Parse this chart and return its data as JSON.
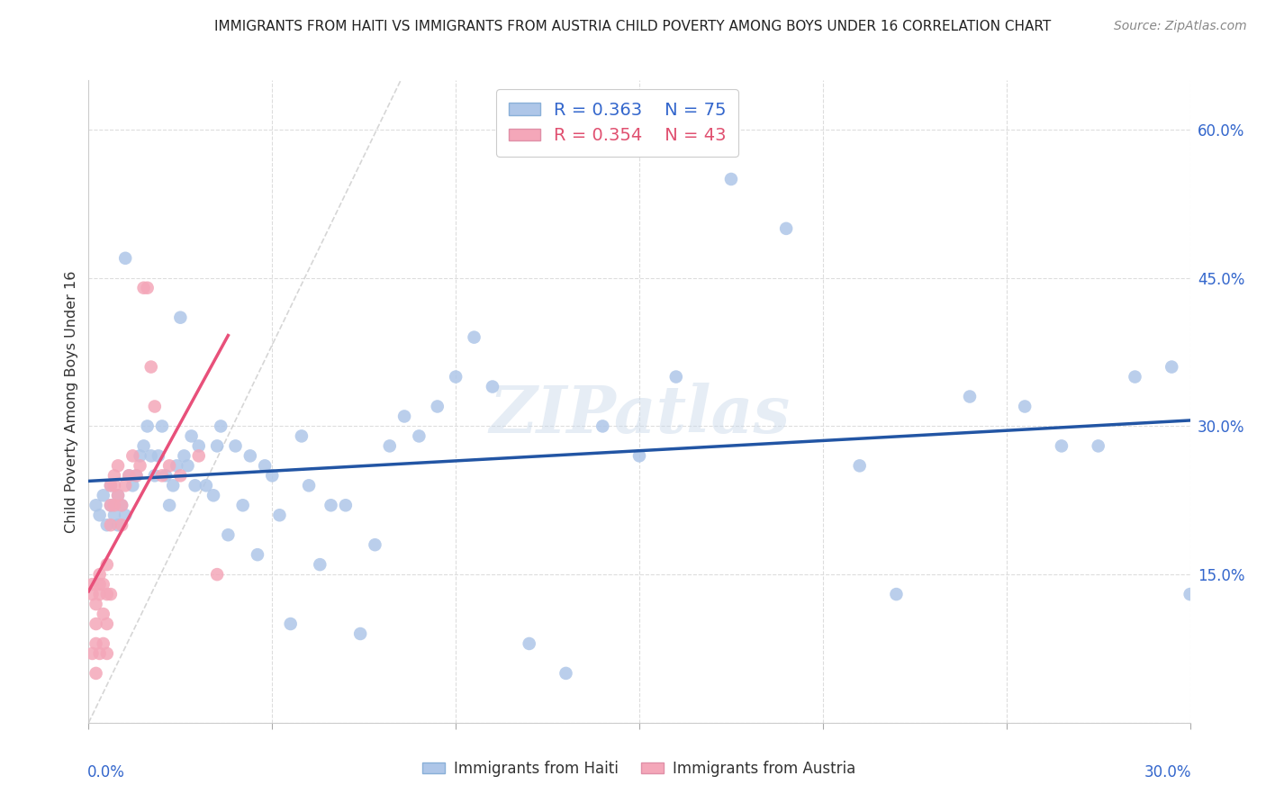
{
  "title": "IMMIGRANTS FROM HAITI VS IMMIGRANTS FROM AUSTRIA CHILD POVERTY AMONG BOYS UNDER 16 CORRELATION CHART",
  "source": "Source: ZipAtlas.com",
  "ylabel": "Child Poverty Among Boys Under 16",
  "right_yticks": [
    0.0,
    0.15,
    0.3,
    0.45,
    0.6
  ],
  "right_yticklabels": [
    "",
    "15.0%",
    "30.0%",
    "45.0%",
    "60.0%"
  ],
  "xlim": [
    0.0,
    0.3
  ],
  "ylim": [
    0.0,
    0.65
  ],
  "haiti_color": "#aec6e8",
  "austria_color": "#f4a7b9",
  "haiti_line_color": "#2255a4",
  "austria_line_color": "#e8507a",
  "diagonal_color": "#cccccc",
  "watermark": "ZIPatlas",
  "legend_haiti_R": "0.363",
  "legend_haiti_N": "75",
  "legend_austria_R": "0.354",
  "legend_austria_N": "43",
  "haiti_scatter_x": [
    0.002,
    0.003,
    0.004,
    0.005,
    0.006,
    0.006,
    0.007,
    0.008,
    0.008,
    0.009,
    0.01,
    0.01,
    0.011,
    0.012,
    0.013,
    0.014,
    0.015,
    0.016,
    0.017,
    0.018,
    0.019,
    0.02,
    0.021,
    0.022,
    0.023,
    0.024,
    0.025,
    0.026,
    0.027,
    0.028,
    0.029,
    0.03,
    0.032,
    0.034,
    0.035,
    0.036,
    0.038,
    0.04,
    0.042,
    0.044,
    0.046,
    0.048,
    0.05,
    0.052,
    0.055,
    0.058,
    0.06,
    0.063,
    0.066,
    0.07,
    0.074,
    0.078,
    0.082,
    0.086,
    0.09,
    0.095,
    0.1,
    0.105,
    0.11,
    0.12,
    0.13,
    0.14,
    0.15,
    0.16,
    0.175,
    0.19,
    0.21,
    0.22,
    0.24,
    0.255,
    0.265,
    0.275,
    0.285,
    0.295,
    0.3
  ],
  "haiti_scatter_y": [
    0.22,
    0.21,
    0.23,
    0.2,
    0.22,
    0.24,
    0.21,
    0.2,
    0.23,
    0.22,
    0.21,
    0.47,
    0.25,
    0.24,
    0.25,
    0.27,
    0.28,
    0.3,
    0.27,
    0.25,
    0.27,
    0.3,
    0.25,
    0.22,
    0.24,
    0.26,
    0.41,
    0.27,
    0.26,
    0.29,
    0.24,
    0.28,
    0.24,
    0.23,
    0.28,
    0.3,
    0.19,
    0.28,
    0.22,
    0.27,
    0.17,
    0.26,
    0.25,
    0.21,
    0.1,
    0.29,
    0.24,
    0.16,
    0.22,
    0.22,
    0.09,
    0.18,
    0.28,
    0.31,
    0.29,
    0.32,
    0.35,
    0.39,
    0.34,
    0.08,
    0.05,
    0.3,
    0.27,
    0.35,
    0.55,
    0.5,
    0.26,
    0.13,
    0.33,
    0.32,
    0.28,
    0.28,
    0.35,
    0.36,
    0.13
  ],
  "austria_scatter_x": [
    0.001,
    0.001,
    0.001,
    0.002,
    0.002,
    0.002,
    0.002,
    0.003,
    0.003,
    0.003,
    0.003,
    0.004,
    0.004,
    0.004,
    0.005,
    0.005,
    0.005,
    0.005,
    0.006,
    0.006,
    0.006,
    0.006,
    0.007,
    0.007,
    0.007,
    0.008,
    0.008,
    0.009,
    0.009,
    0.01,
    0.011,
    0.012,
    0.013,
    0.014,
    0.015,
    0.016,
    0.017,
    0.018,
    0.02,
    0.022,
    0.025,
    0.03,
    0.035
  ],
  "austria_scatter_y": [
    0.14,
    0.13,
    0.07,
    0.12,
    0.1,
    0.08,
    0.05,
    0.15,
    0.14,
    0.13,
    0.07,
    0.14,
    0.11,
    0.08,
    0.16,
    0.13,
    0.1,
    0.07,
    0.22,
    0.24,
    0.2,
    0.13,
    0.24,
    0.22,
    0.25,
    0.23,
    0.26,
    0.2,
    0.22,
    0.24,
    0.25,
    0.27,
    0.25,
    0.26,
    0.44,
    0.44,
    0.36,
    0.32,
    0.25,
    0.26,
    0.25,
    0.27,
    0.15
  ]
}
